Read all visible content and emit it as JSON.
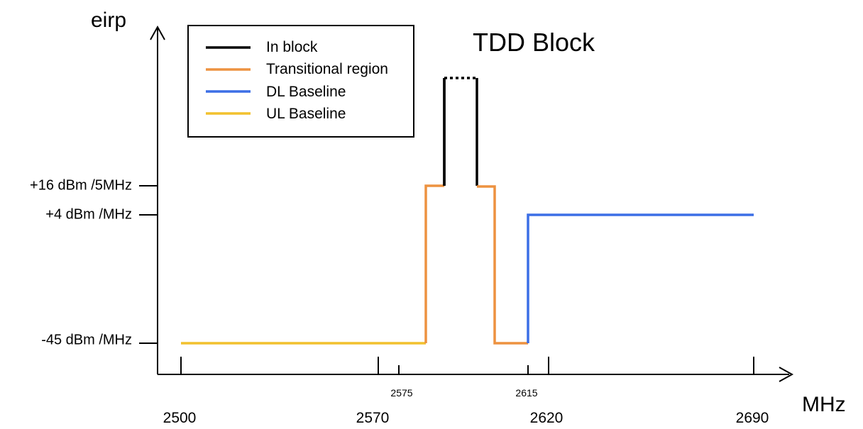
{
  "chart_data": {
    "type": "line",
    "title": "TDD Block",
    "ylabel": "eirp",
    "xlabel": "MHz",
    "y_tick_labels": [
      "+16 dBm /5MHz",
      "+4 dBm /MHz",
      "-45 dBm /MHz"
    ],
    "x_major_tick_labels": [
      "2500",
      "2570",
      "2620",
      "2690"
    ],
    "x_minor_tick_labels": [
      "2575",
      "2615"
    ],
    "legend": {
      "placement": "top-left",
      "entries": [
        {
          "label": "In block",
          "color": "#000000"
        },
        {
          "label": "Transitional region",
          "color": "#ED9240"
        },
        {
          "label": "DL Baseline",
          "color": "#3C6FE6"
        },
        {
          "label": "UL Baseline",
          "color": "#F2C12E"
        }
      ]
    }
  }
}
